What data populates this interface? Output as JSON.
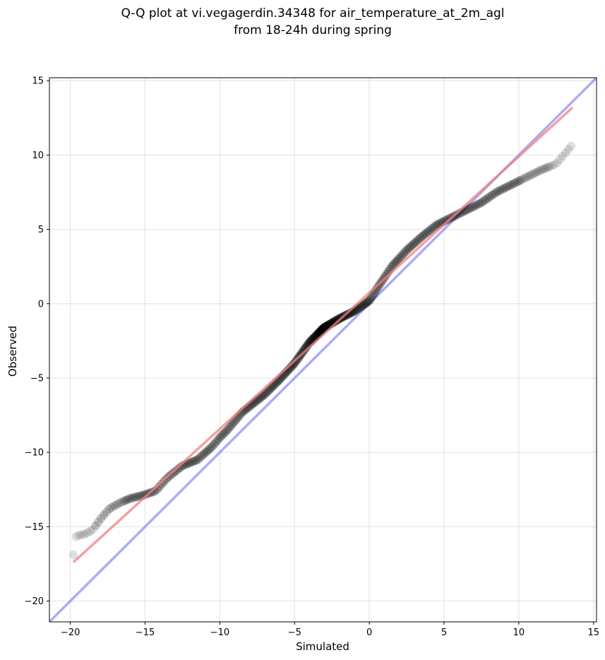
{
  "chart_data": {
    "type": "scatter",
    "title": [
      "Q-Q plot at vi.vegagerdin.34348 for air_temperature_at_2m_agl",
      "from 18-24h during spring"
    ],
    "xlabel": "Simulated",
    "ylabel": "Observed",
    "xlim": [
      -21.4,
      15.2
    ],
    "ylim": [
      -21.4,
      15.2
    ],
    "xticks": [
      -20,
      -15,
      -10,
      -5,
      0,
      5,
      10,
      15
    ],
    "yticks": [
      -20,
      -15,
      -10,
      -5,
      0,
      5,
      10,
      15
    ],
    "xtick_labels": [
      "−20",
      "−15",
      "−10",
      "−5",
      "0",
      "5",
      "10",
      "15"
    ],
    "ytick_labels": [
      "−20",
      "−15",
      "−10",
      "−5",
      "0",
      "5",
      "10",
      "15"
    ],
    "grid": true,
    "colors": {
      "points": "#000000",
      "fit_line": "#f08080",
      "identity_line": "#8080f0",
      "tail_color": "#b4b4b4"
    },
    "identity_line": {
      "x": [
        -21.4,
        15.2
      ],
      "y": [
        -21.4,
        15.2
      ]
    },
    "fit_line": {
      "x": [
        -19.8,
        13.6
      ],
      "y": [
        -17.4,
        13.2
      ]
    },
    "series": [
      {
        "type": "scatter",
        "anchors_x": [
          -19.8,
          -19.6,
          -19.0,
          -18.5,
          -18.0,
          -17.4,
          -16.7,
          -16.0,
          -15.2,
          -14.3,
          -13.5,
          -12.5,
          -11.5,
          -10.5,
          -10.0,
          -9.5,
          -8.5,
          -7.0,
          -6.0,
          -5.0,
          -4.0,
          -3.0,
          -2.0,
          -1.0,
          0.0,
          0.5,
          1.5,
          2.5,
          3.5,
          4.5,
          5.5,
          6.5,
          7.5,
          8.5,
          9.5,
          10.5,
          11.5,
          12.5,
          13.0,
          13.5
        ],
        "anchors_y": [
          -16.9,
          -15.6,
          -15.5,
          -15.2,
          -14.5,
          -13.8,
          -13.4,
          -13.1,
          -12.9,
          -12.6,
          -11.7,
          -10.9,
          -10.5,
          -9.6,
          -9.0,
          -8.5,
          -7.3,
          -6.1,
          -5.1,
          -4.0,
          -2.6,
          -1.6,
          -1.0,
          -0.5,
          0.2,
          1.0,
          2.5,
          3.6,
          4.5,
          5.3,
          5.8,
          6.3,
          6.8,
          7.5,
          8.0,
          8.5,
          9.0,
          9.4,
          10.0,
          10.6
        ],
        "n_points": 300
      }
    ]
  }
}
